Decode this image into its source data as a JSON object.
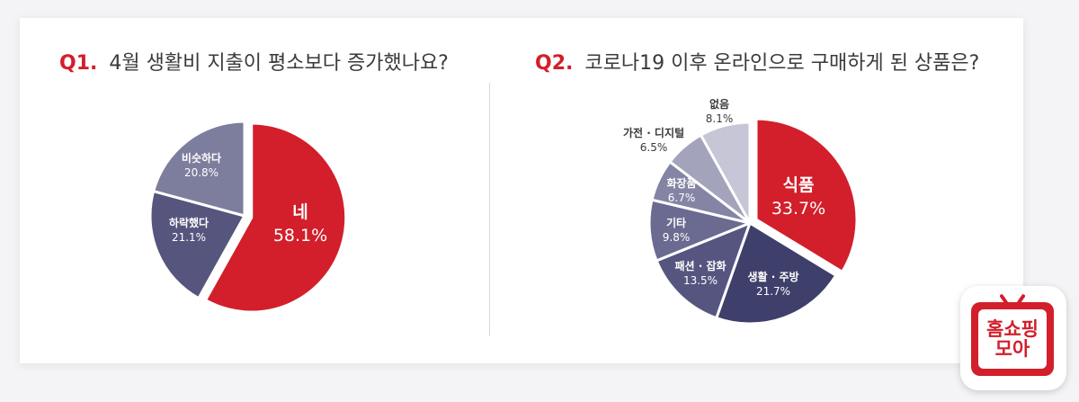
{
  "q1": {
    "num": "Q1.",
    "question": "4월 생활비 지출이 평소보다 증가했나요?"
  },
  "q2": {
    "num": "Q2.",
    "question": "코로나19 이후 온라인으로 구매하게 된 상품은?"
  },
  "logo": {
    "line1": "홈쇼핑",
    "line2": "모아"
  },
  "colors": {
    "accent": "#d21f2b",
    "navy": "#3f3f6b"
  },
  "chart_data": [
    {
      "type": "pie",
      "title": "4월 생활비 지출이 평소보다 증가했나요?",
      "slices": [
        {
          "label": "네",
          "value": 58.1,
          "display": "58.1%",
          "color": "#d21f2b"
        },
        {
          "label": "하락했다",
          "value": 21.1,
          "display": "21.1%",
          "color": "#55557e"
        },
        {
          "label": "비슷하다",
          "value": 20.8,
          "display": "20.8%",
          "color": "#7d7d9e"
        }
      ]
    },
    {
      "type": "pie",
      "title": "코로나19 이후 온라인으로 구매하게 된 상품은?",
      "slices": [
        {
          "label": "식품",
          "value": 33.7,
          "display": "33.7%",
          "color": "#d21f2b"
        },
        {
          "label": "생활 · 주방",
          "value": 21.7,
          "display": "21.7%",
          "color": "#3f3f6b"
        },
        {
          "label": "패션 · 잡화",
          "value": 13.5,
          "display": "13.5%",
          "color": "#555580"
        },
        {
          "label": "기타",
          "value": 9.8,
          "display": "9.8%",
          "color": "#6b6b91"
        },
        {
          "label": "화장품",
          "value": 6.7,
          "display": "6.7%",
          "color": "#8484a4"
        },
        {
          "label": "가전 · 디지털",
          "value": 6.5,
          "display": "6.5%",
          "color": "#a3a3bb"
        },
        {
          "label": "없음",
          "value": 8.1,
          "display": "8.1%",
          "color": "#c6c6d6"
        }
      ]
    }
  ]
}
